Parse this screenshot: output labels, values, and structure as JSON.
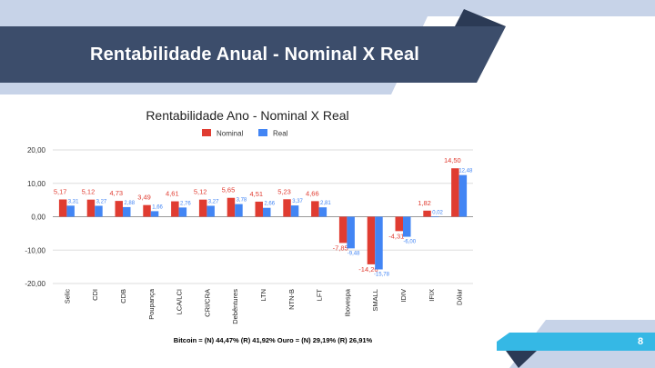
{
  "slide": {
    "title": "Rentabilidade Anual - Nominal X Real",
    "page_number": "8",
    "note": "Bitcoin = (N) 44,47% (R) 41,92%    Ouro = (N) 29,19%  (R) 26,91%",
    "colors": {
      "title_band": "#3c4d6b",
      "light_band": "#c7d3e8",
      "accent_cyan": "#35b8e5",
      "dark_triangle": "#2b3a55"
    }
  },
  "chart_data": {
    "type": "bar",
    "title": "Rentabilidade Ano - Nominal X Real",
    "categories": [
      "Selic",
      "CDI",
      "CDB",
      "Poupança",
      "LCA/LCI",
      "CRI/CRA",
      "Debêntures",
      "LTN",
      "NTN-B",
      "LFT",
      "Ibovespa",
      "SMALL",
      "IDIV",
      "IFIX",
      "Dólar"
    ],
    "series": [
      {
        "name": "Nominal",
        "color": "#e03c31",
        "values": [
          5.17,
          5.12,
          4.73,
          3.49,
          4.61,
          5.12,
          5.65,
          4.51,
          5.23,
          4.66,
          -7.85,
          -14.26,
          -4.31,
          1.82,
          14.5
        ],
        "labels": [
          "5,17",
          "5,12",
          "4,73",
          "3,49",
          "4,61",
          "5,12",
          "5,65",
          "4,51",
          "5,23",
          "4,66",
          "-7,85",
          "-14,26",
          "-4,31",
          "1,82",
          "14,50"
        ]
      },
      {
        "name": "Real",
        "color": "#4285f4",
        "values": [
          3.31,
          3.27,
          2.88,
          1.66,
          2.76,
          3.27,
          3.78,
          2.66,
          3.37,
          2.81,
          -9.48,
          -15.78,
          -6.0,
          0.02,
          12.48
        ],
        "labels": [
          "3,31",
          "3,27",
          "2,88",
          "1,66",
          "2,76",
          "3,27",
          "3,78",
          "2,66",
          "3,37",
          "2,81",
          "-9,48",
          "-15,78",
          "-6,00",
          "0,02",
          "12,48"
        ]
      }
    ],
    "y_ticks": [
      20,
      10,
      0,
      -10,
      -20
    ],
    "y_tick_labels": [
      "20,00",
      "10,00",
      "0,00",
      "-10,00",
      "-20,00"
    ],
    "ylim": [
      -20,
      20
    ],
    "grid": true,
    "legend": "top-center"
  }
}
